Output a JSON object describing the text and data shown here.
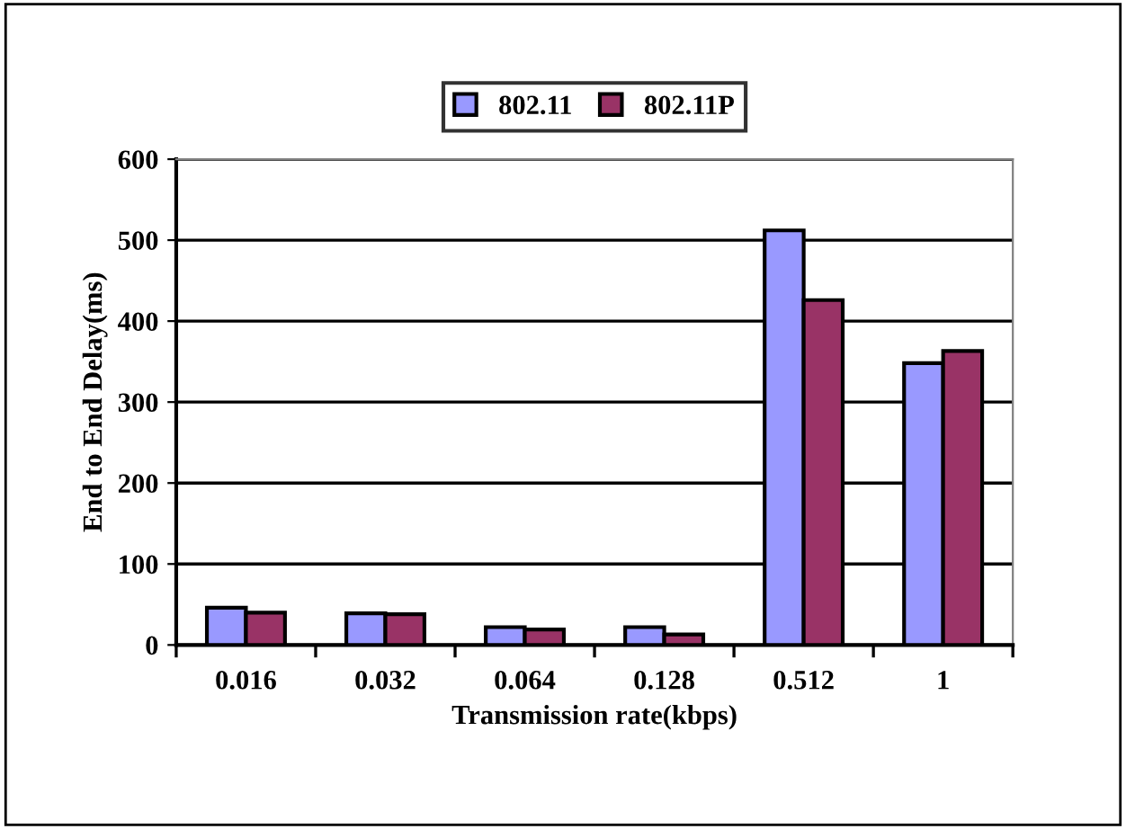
{
  "chart_data": {
    "type": "bar",
    "xlabel": "Transmission rate(kbps)",
    "ylabel": "End to End Delay(ms)",
    "categories": [
      "0.016",
      "0.032",
      "0.064",
      "0.128",
      "0.512",
      "1"
    ],
    "series": [
      {
        "name": "802.11",
        "color": "#9999ff",
        "values": [
          46,
          39,
          22,
          22,
          512,
          348
        ]
      },
      {
        "name": "802.11P",
        "color": "#993366",
        "values": [
          40,
          38,
          19,
          13,
          426,
          363
        ]
      }
    ],
    "ylim": [
      0,
      600
    ],
    "yticks": [
      0,
      100,
      200,
      300,
      400,
      500,
      600
    ],
    "grid": "y",
    "legend": "top"
  }
}
